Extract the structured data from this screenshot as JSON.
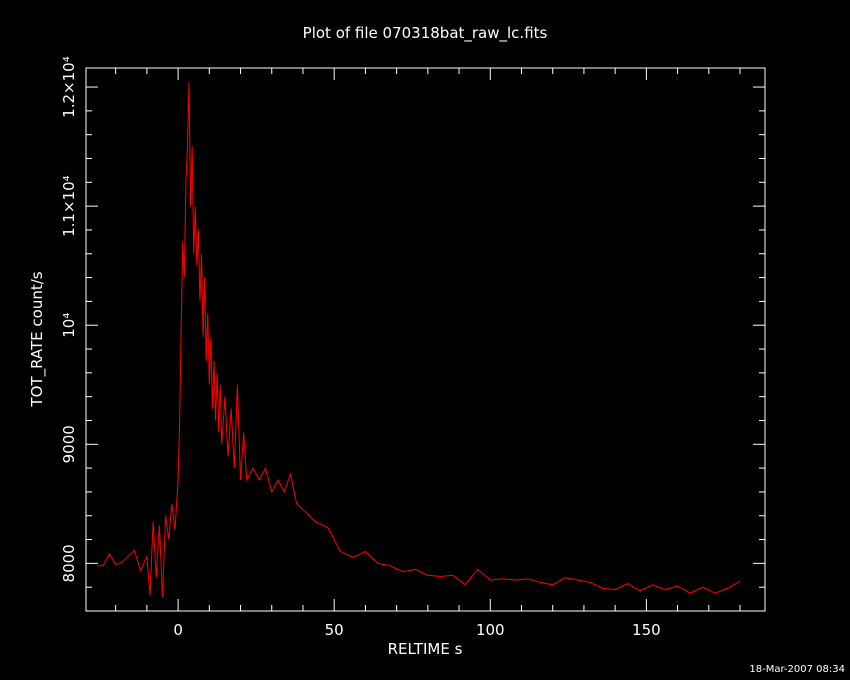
{
  "chart_data": {
    "type": "line",
    "title": "Plot of file 070318bat_raw_lc.fits",
    "x_label": "RELTIME   s",
    "y_label": "TOT_RATE   count/s",
    "footer": "18-Mar-2007 08:34",
    "xlim": [
      -29.5,
      188
    ],
    "ylim": [
      7600,
      12160
    ],
    "xticks": [
      0,
      50,
      100,
      150
    ],
    "yticks": [
      8000,
      9000,
      {
        "value": 10000,
        "label": "10⁴"
      },
      {
        "value": 11000,
        "label": "1.1×10⁴"
      },
      {
        "value": 12000,
        "label": "1.2×10⁴"
      }
    ],
    "x_minor_ticks": [
      -20,
      -10,
      10,
      20,
      30,
      40,
      60,
      70,
      80,
      90,
      110,
      120,
      130,
      140,
      160,
      170,
      180
    ],
    "y_minor_ticks": [
      7800,
      8200,
      8400,
      8600,
      8800,
      9200,
      9400,
      9600,
      9800,
      10200,
      10400,
      10600,
      10800,
      11200,
      11400,
      11600,
      11800
    ],
    "background": "#000000",
    "axis_color": "#ffffff",
    "series": [
      {
        "color": "#ff0000",
        "x": [
          -26,
          -24,
          -22,
          -20,
          -18,
          -16,
          -14,
          -12,
          -10,
          -9,
          -8,
          -7,
          -6,
          -5,
          -4,
          -3,
          -2,
          -1,
          0,
          0.5,
          1,
          1.5,
          2,
          2.5,
          3,
          3.5,
          4,
          4.5,
          5,
          5.5,
          6,
          6.5,
          7,
          7.5,
          8,
          8.5,
          9,
          9.5,
          10,
          10.5,
          11,
          11.5,
          12,
          12.5,
          13,
          13.5,
          14,
          15,
          16,
          17,
          18,
          19,
          20,
          21,
          22,
          24,
          26,
          28,
          30,
          32,
          34,
          36,
          38,
          40,
          44,
          48,
          52,
          56,
          60,
          64,
          68,
          72,
          76,
          80,
          84,
          88,
          92,
          96,
          100,
          104,
          108,
          112,
          116,
          120,
          124,
          128,
          132,
          136,
          140,
          144,
          148,
          152,
          156,
          160,
          164,
          168,
          172,
          176,
          180
        ],
        "values": [
          7980,
          7980,
          8080,
          7990,
          8010,
          8060,
          8110,
          7940,
          8060,
          7730,
          8350,
          7880,
          8320,
          7720,
          8400,
          8200,
          8500,
          8280,
          8700,
          9200,
          10000,
          10700,
          10400,
          11200,
          11500,
          12040,
          11000,
          11500,
          10600,
          11000,
          10500,
          10800,
          10200,
          10600,
          9900,
          10400,
          9700,
          10100,
          9500,
          9900,
          9300,
          9700,
          9200,
          9600,
          9100,
          9500,
          9000,
          9400,
          8900,
          9300,
          8800,
          9500,
          8700,
          9100,
          8700,
          8800,
          8700,
          8800,
          8600,
          8700,
          8600,
          8750,
          8500,
          8450,
          8350,
          8300,
          8100,
          8050,
          8100,
          8000,
          7980,
          7930,
          7950,
          7900,
          7890,
          7900,
          7820,
          7950,
          7860,
          7870,
          7860,
          7870,
          7840,
          7820,
          7880,
          7860,
          7840,
          7790,
          7780,
          7830,
          7770,
          7820,
          7780,
          7810,
          7750,
          7800,
          7750,
          7790,
          7850
        ]
      }
    ]
  }
}
